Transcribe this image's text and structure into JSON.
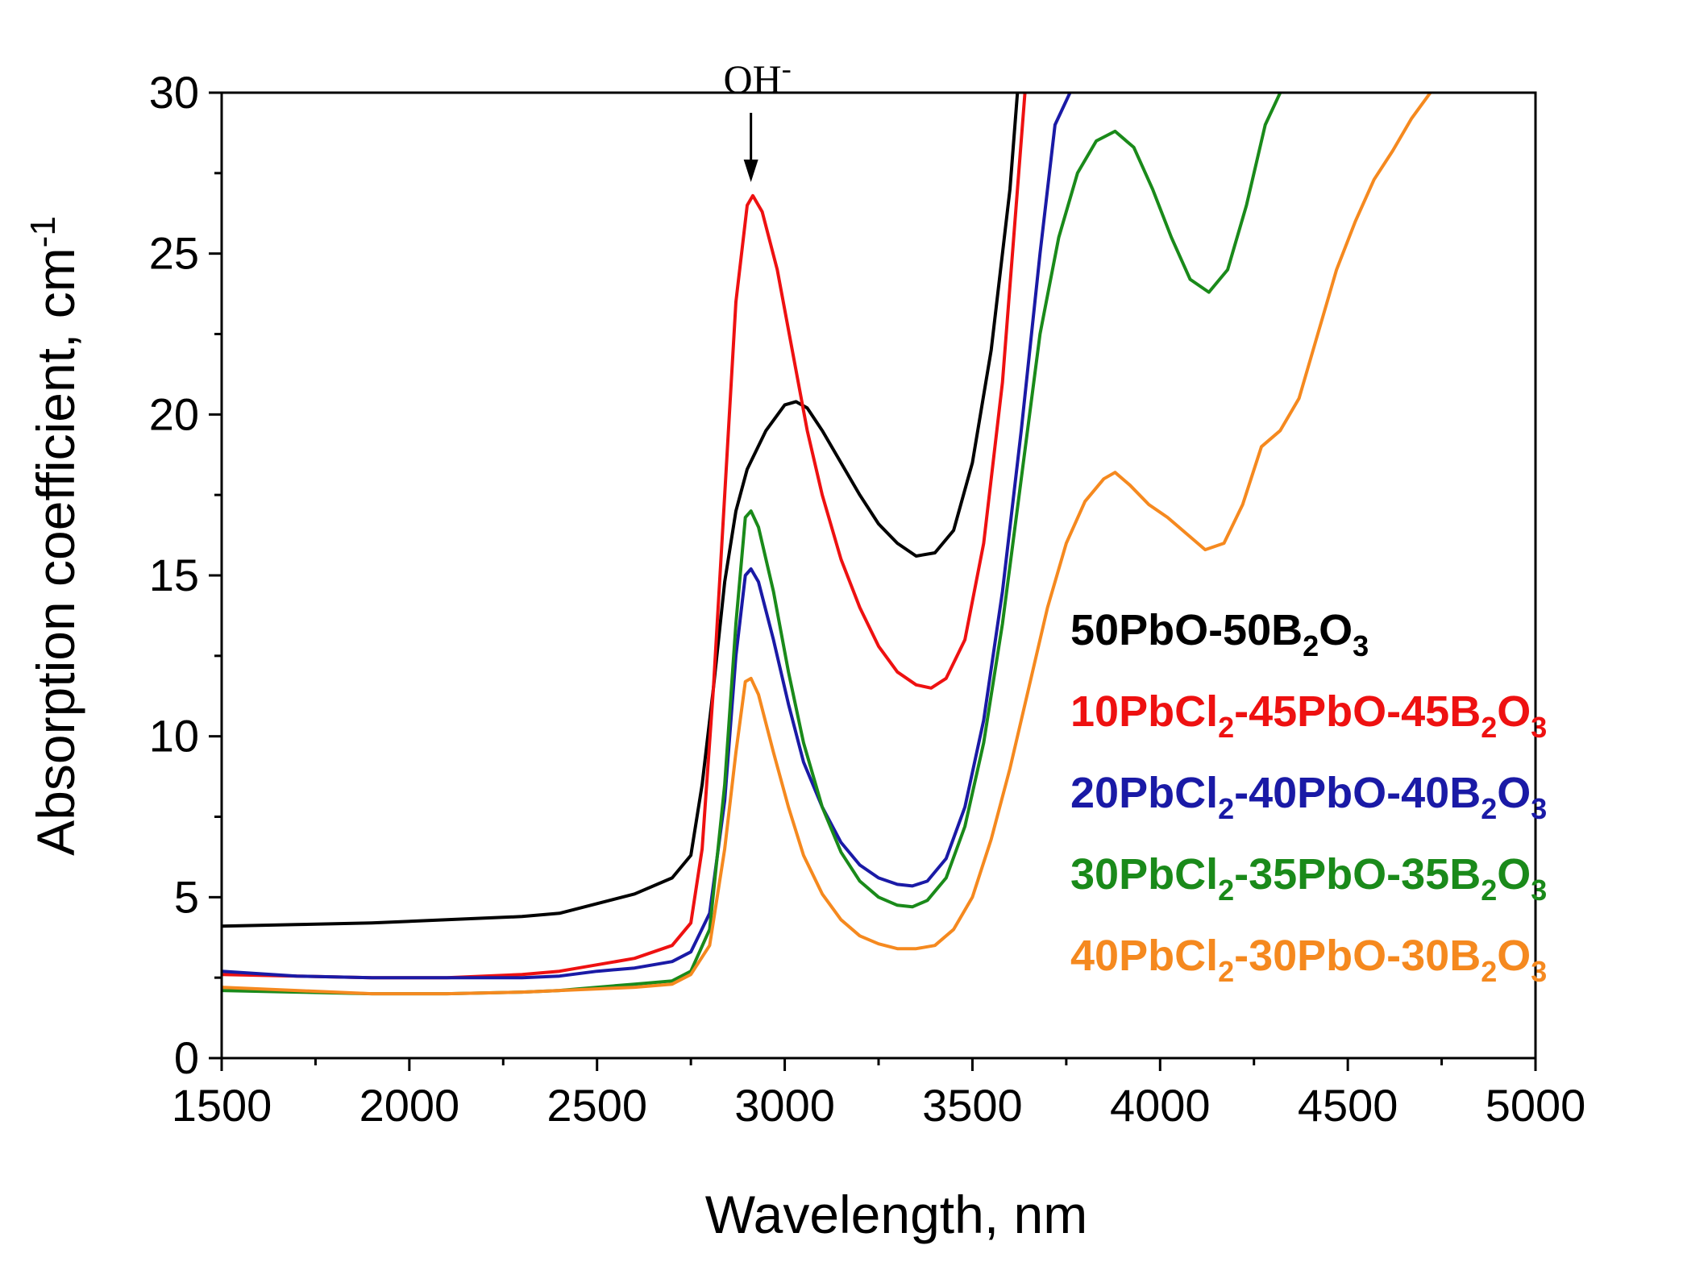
{
  "chart_data": {
    "type": "line",
    "title": "",
    "xlabel": "Wavelength, nm",
    "ylabel": "Absorption coefficient, cm",
    "ylabel_superscript": "-1",
    "xlim": [
      1500,
      5000
    ],
    "ylim": [
      0,
      30
    ],
    "x_ticks": [
      1500,
      2000,
      2500,
      3000,
      3500,
      4000,
      4500,
      5000
    ],
    "y_ticks": [
      0,
      5,
      10,
      15,
      20,
      25,
      30
    ],
    "grid": false,
    "legend_position": "right",
    "annotation": {
      "text": "OH",
      "superscript": "-",
      "x": 2910,
      "y": 27.3
    },
    "series": [
      {
        "name": "50PbO-50B2O3",
        "legend_parts": [
          "50PbO-50B",
          "2",
          "O",
          "3",
          ""
        ],
        "color": "#000000",
        "points": [
          [
            1500,
            4.1
          ],
          [
            1700,
            4.15
          ],
          [
            1900,
            4.2
          ],
          [
            2100,
            4.3
          ],
          [
            2300,
            4.4
          ],
          [
            2400,
            4.5
          ],
          [
            2500,
            4.8
          ],
          [
            2600,
            5.1
          ],
          [
            2700,
            5.6
          ],
          [
            2750,
            6.3
          ],
          [
            2780,
            8.5
          ],
          [
            2810,
            11.5
          ],
          [
            2840,
            14.8
          ],
          [
            2870,
            17.0
          ],
          [
            2900,
            18.3
          ],
          [
            2950,
            19.5
          ],
          [
            3000,
            20.3
          ],
          [
            3030,
            20.4
          ],
          [
            3060,
            20.2
          ],
          [
            3100,
            19.5
          ],
          [
            3150,
            18.5
          ],
          [
            3200,
            17.5
          ],
          [
            3250,
            16.6
          ],
          [
            3300,
            16.0
          ],
          [
            3350,
            15.6
          ],
          [
            3400,
            15.7
          ],
          [
            3450,
            16.4
          ],
          [
            3500,
            18.5
          ],
          [
            3550,
            22.0
          ],
          [
            3600,
            27.0
          ],
          [
            3620,
            30.0
          ]
        ]
      },
      {
        "name": "10PbCl2-45PbO-45B2O3",
        "legend_parts": [
          "10PbCl",
          "2",
          "-45PbO-45B",
          "2",
          "O",
          "3",
          ""
        ],
        "color": "#ee1111",
        "points": [
          [
            1500,
            2.6
          ],
          [
            1700,
            2.55
          ],
          [
            1900,
            2.5
          ],
          [
            2100,
            2.5
          ],
          [
            2300,
            2.6
          ],
          [
            2400,
            2.7
          ],
          [
            2500,
            2.9
          ],
          [
            2600,
            3.1
          ],
          [
            2700,
            3.5
          ],
          [
            2750,
            4.2
          ],
          [
            2780,
            6.5
          ],
          [
            2810,
            11.5
          ],
          [
            2840,
            17.5
          ],
          [
            2870,
            23.5
          ],
          [
            2900,
            26.5
          ],
          [
            2915,
            26.8
          ],
          [
            2940,
            26.3
          ],
          [
            2980,
            24.5
          ],
          [
            3020,
            22.0
          ],
          [
            3060,
            19.5
          ],
          [
            3100,
            17.5
          ],
          [
            3150,
            15.5
          ],
          [
            3200,
            14.0
          ],
          [
            3250,
            12.8
          ],
          [
            3300,
            12.0
          ],
          [
            3350,
            11.6
          ],
          [
            3390,
            11.5
          ],
          [
            3430,
            11.8
          ],
          [
            3480,
            13.0
          ],
          [
            3530,
            16.0
          ],
          [
            3580,
            21.0
          ],
          [
            3620,
            27.0
          ],
          [
            3640,
            30.0
          ]
        ]
      },
      {
        "name": "20PbCl2-40PbO-40B2O3",
        "legend_parts": [
          "20PbCl",
          "2",
          "-40PbO-40B",
          "2",
          "O",
          "3",
          ""
        ],
        "color": "#1a1aa6",
        "points": [
          [
            1500,
            2.7
          ],
          [
            1700,
            2.55
          ],
          [
            1900,
            2.5
          ],
          [
            2100,
            2.5
          ],
          [
            2300,
            2.5
          ],
          [
            2400,
            2.55
          ],
          [
            2500,
            2.7
          ],
          [
            2600,
            2.8
          ],
          [
            2700,
            3.0
          ],
          [
            2750,
            3.3
          ],
          [
            2800,
            4.5
          ],
          [
            2840,
            8.0
          ],
          [
            2870,
            12.5
          ],
          [
            2895,
            15.0
          ],
          [
            2910,
            15.2
          ],
          [
            2930,
            14.8
          ],
          [
            2970,
            13.0
          ],
          [
            3010,
            11.0
          ],
          [
            3050,
            9.2
          ],
          [
            3100,
            7.8
          ],
          [
            3150,
            6.7
          ],
          [
            3200,
            6.0
          ],
          [
            3250,
            5.6
          ],
          [
            3300,
            5.4
          ],
          [
            3340,
            5.35
          ],
          [
            3380,
            5.5
          ],
          [
            3430,
            6.2
          ],
          [
            3480,
            7.8
          ],
          [
            3530,
            10.5
          ],
          [
            3580,
            14.5
          ],
          [
            3630,
            19.5
          ],
          [
            3680,
            25.0
          ],
          [
            3720,
            29.0
          ],
          [
            3760,
            30.0
          ]
        ]
      },
      {
        "name": "30PbCl2-35PbO-35B2O3",
        "legend_parts": [
          "30PbCl",
          "2",
          "-35PbO-35B",
          "2",
          "O",
          "3",
          ""
        ],
        "color": "#1a8a1a",
        "points": [
          [
            1500,
            2.1
          ],
          [
            1700,
            2.05
          ],
          [
            1900,
            2.0
          ],
          [
            2100,
            2.0
          ],
          [
            2300,
            2.05
          ],
          [
            2400,
            2.1
          ],
          [
            2500,
            2.2
          ],
          [
            2600,
            2.3
          ],
          [
            2700,
            2.4
          ],
          [
            2750,
            2.7
          ],
          [
            2800,
            4.0
          ],
          [
            2840,
            8.5
          ],
          [
            2870,
            13.5
          ],
          [
            2895,
            16.8
          ],
          [
            2910,
            17.0
          ],
          [
            2930,
            16.5
          ],
          [
            2970,
            14.5
          ],
          [
            3010,
            12.0
          ],
          [
            3050,
            9.8
          ],
          [
            3100,
            7.8
          ],
          [
            3150,
            6.4
          ],
          [
            3200,
            5.5
          ],
          [
            3250,
            5.0
          ],
          [
            3300,
            4.75
          ],
          [
            3340,
            4.7
          ],
          [
            3380,
            4.9
          ],
          [
            3430,
            5.6
          ],
          [
            3480,
            7.2
          ],
          [
            3530,
            9.8
          ],
          [
            3580,
            13.5
          ],
          [
            3630,
            18.0
          ],
          [
            3680,
            22.5
          ],
          [
            3730,
            25.5
          ],
          [
            3780,
            27.5
          ],
          [
            3830,
            28.5
          ],
          [
            3880,
            28.8
          ],
          [
            3930,
            28.3
          ],
          [
            3980,
            27.0
          ],
          [
            4030,
            25.5
          ],
          [
            4080,
            24.2
          ],
          [
            4130,
            23.8
          ],
          [
            4180,
            24.5
          ],
          [
            4230,
            26.5
          ],
          [
            4280,
            29.0
          ],
          [
            4320,
            30.0
          ]
        ]
      },
      {
        "name": "40PbCl2-30PbO-30B2O3",
        "legend_parts": [
          "40PbCl",
          "2",
          "-30PbO-30B",
          "2",
          "O",
          "3",
          ""
        ],
        "color": "#f5891f",
        "points": [
          [
            1500,
            2.2
          ],
          [
            1700,
            2.1
          ],
          [
            1900,
            2.0
          ],
          [
            2100,
            2.0
          ],
          [
            2300,
            2.05
          ],
          [
            2400,
            2.1
          ],
          [
            2500,
            2.15
          ],
          [
            2600,
            2.2
          ],
          [
            2700,
            2.3
          ],
          [
            2750,
            2.6
          ],
          [
            2800,
            3.5
          ],
          [
            2840,
            6.5
          ],
          [
            2870,
            9.5
          ],
          [
            2895,
            11.7
          ],
          [
            2910,
            11.8
          ],
          [
            2930,
            11.3
          ],
          [
            2970,
            9.5
          ],
          [
            3010,
            7.8
          ],
          [
            3050,
            6.3
          ],
          [
            3100,
            5.1
          ],
          [
            3150,
            4.3
          ],
          [
            3200,
            3.8
          ],
          [
            3250,
            3.55
          ],
          [
            3300,
            3.4
          ],
          [
            3350,
            3.4
          ],
          [
            3400,
            3.5
          ],
          [
            3450,
            4.0
          ],
          [
            3500,
            5.0
          ],
          [
            3550,
            6.8
          ],
          [
            3600,
            9.0
          ],
          [
            3650,
            11.5
          ],
          [
            3700,
            14.0
          ],
          [
            3750,
            16.0
          ],
          [
            3800,
            17.3
          ],
          [
            3850,
            18.0
          ],
          [
            3880,
            18.2
          ],
          [
            3920,
            17.8
          ],
          [
            3970,
            17.2
          ],
          [
            4020,
            16.8
          ],
          [
            4070,
            16.3
          ],
          [
            4120,
            15.8
          ],
          [
            4170,
            16.0
          ],
          [
            4220,
            17.2
          ],
          [
            4270,
            19.0
          ],
          [
            4320,
            19.5
          ],
          [
            4370,
            20.5
          ],
          [
            4420,
            22.5
          ],
          [
            4470,
            24.5
          ],
          [
            4520,
            26.0
          ],
          [
            4570,
            27.3
          ],
          [
            4620,
            28.2
          ],
          [
            4670,
            29.2
          ],
          [
            4720,
            30.0
          ]
        ]
      }
    ]
  }
}
